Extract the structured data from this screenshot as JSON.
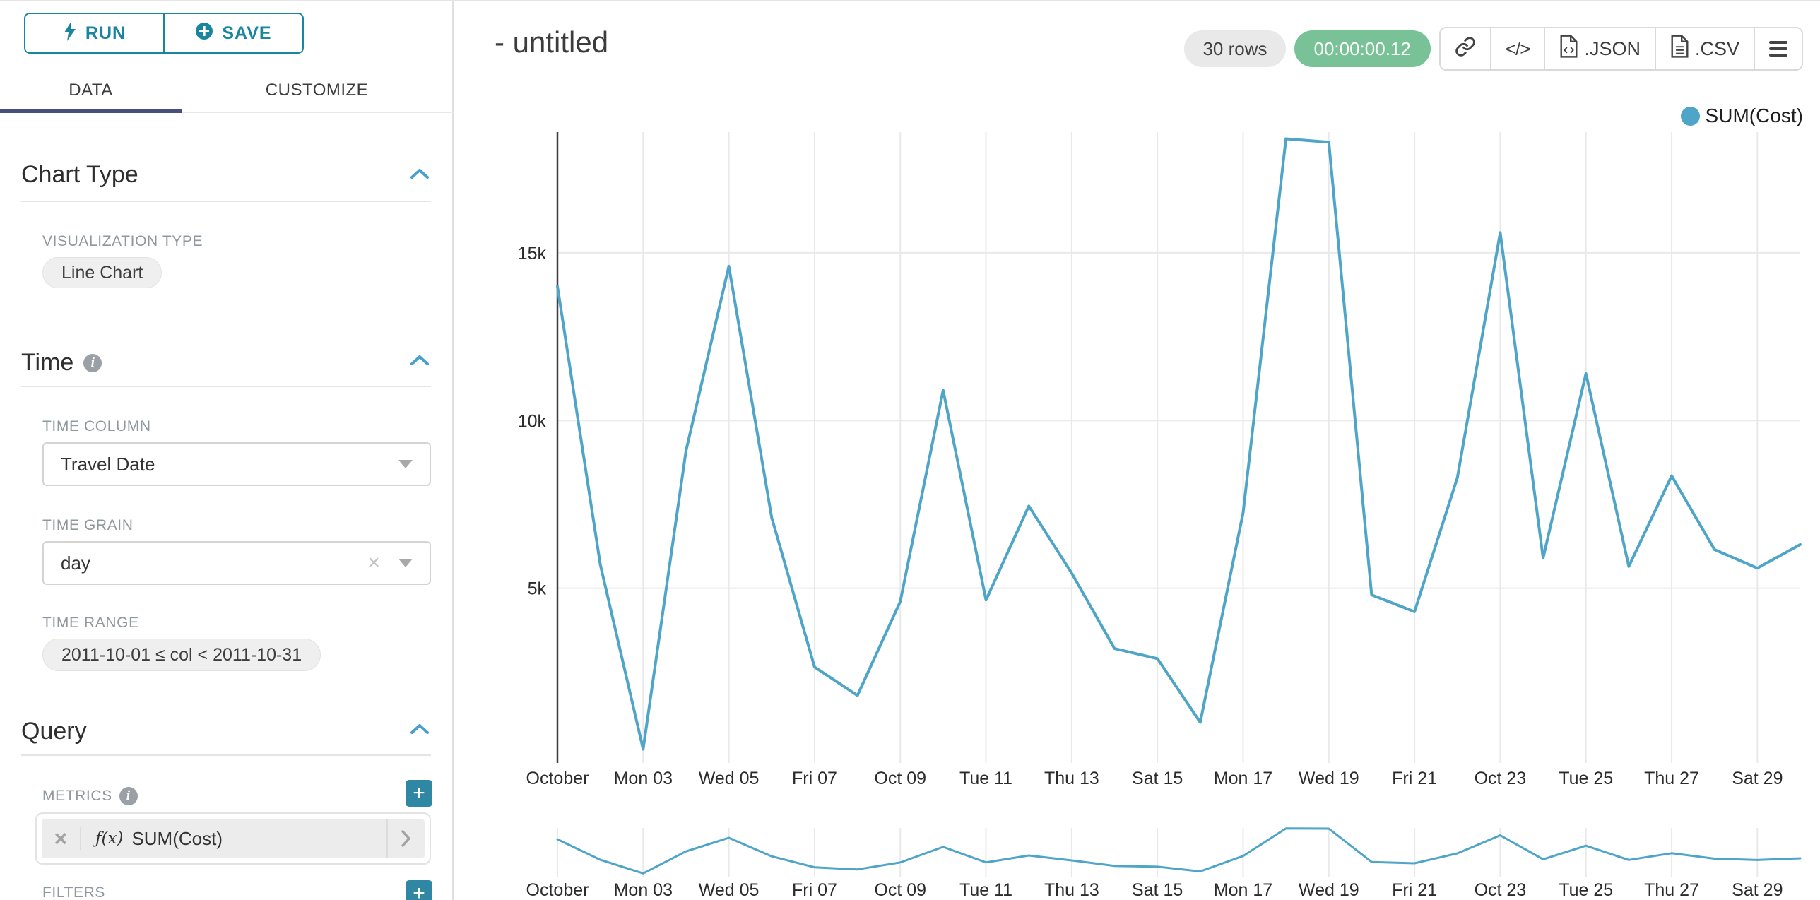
{
  "colors": {
    "accent_teal": "#1985a0",
    "add_button_teal": "#2f87a3",
    "timer_green": "#79c297",
    "tab_indicator": "#474f7c",
    "section_chevron_blue": "#4aa0cc",
    "series_line": "#4fa5c7"
  },
  "sidebar": {
    "run_button": "RUN",
    "save_button": "SAVE",
    "tabs": [
      {
        "label": "DATA",
        "active": true
      },
      {
        "label": "CUSTOMIZE",
        "active": false
      }
    ],
    "chart_type_section": {
      "title": "Chart Type",
      "visualization_type_label": "VISUALIZATION TYPE",
      "visualization_type_value": "Line Chart"
    },
    "time_section": {
      "title": "Time",
      "time_column_label": "TIME COLUMN",
      "time_column_value": "Travel Date",
      "time_grain_label": "TIME GRAIN",
      "time_grain_value": "day",
      "time_range_label": "TIME RANGE",
      "time_range_value": "2011-10-01 ≤ col < 2011-10-31"
    },
    "query_section": {
      "title": "Query",
      "metrics_label": "METRICS",
      "metric": {
        "fx": "ƒ(x)",
        "name": "SUM(Cost)"
      },
      "filters_label": "FILTERS"
    }
  },
  "header": {
    "title": "- untitled",
    "rows_badge": "30 rows",
    "timer_badge": "00:00:00.12",
    "export_json_label": ".JSON",
    "export_csv_label": ".CSV"
  },
  "legend": {
    "label": "SUM(Cost)",
    "color": "#4fa5c7"
  },
  "chart_data": {
    "type": "line",
    "title": "- untitled",
    "x": [
      "2011-10-01",
      "2011-10-02",
      "2011-10-03",
      "2011-10-04",
      "2011-10-05",
      "2011-10-06",
      "2011-10-07",
      "2011-10-08",
      "2011-10-09",
      "2011-10-10",
      "2011-10-11",
      "2011-10-12",
      "2011-10-13",
      "2011-10-14",
      "2011-10-15",
      "2011-10-16",
      "2011-10-17",
      "2011-10-18",
      "2011-10-19",
      "2011-10-20",
      "2011-10-21",
      "2011-10-22",
      "2011-10-23",
      "2011-10-24",
      "2011-10-25",
      "2011-10-26",
      "2011-10-27",
      "2011-10-28",
      "2011-10-29",
      "2011-10-30"
    ],
    "series": [
      {
        "name": "SUM(Cost)",
        "values": [
          14000,
          5700,
          200,
          9100,
          14600,
          7100,
          2650,
          1800,
          4600,
          10900,
          4650,
          7450,
          5450,
          3200,
          2900,
          1000,
          7250,
          18400,
          18300,
          4800,
          4300,
          8300,
          15600,
          5900,
          11400,
          5650,
          8350,
          6150,
          5600,
          6300
        ]
      }
    ],
    "x_tick_labels": [
      "October",
      "Mon 03",
      "Wed 05",
      "Fri 07",
      "Oct 09",
      "Tue 11",
      "Thu 13",
      "Sat 15",
      "Mon 17",
      "Wed 19",
      "Fri 21",
      "Oct 23",
      "Tue 25",
      "Thu 27",
      "Sat 29"
    ],
    "y_ticks": [
      {
        "label": "5k",
        "value": 5000
      },
      {
        "label": "10k",
        "value": 10000
      },
      {
        "label": "15k",
        "value": 15000
      }
    ],
    "ylim": [
      0,
      18600
    ],
    "xlabel": "",
    "ylabel": "",
    "grid": true,
    "line_color": "#4fa5c7",
    "axis_line_color": "#3f3f3f",
    "gridline_color": "#e9e9e9",
    "legend_entries": [
      "SUM(Cost)"
    ],
    "legend_position": "top-right",
    "range_selector_minichart": true
  }
}
